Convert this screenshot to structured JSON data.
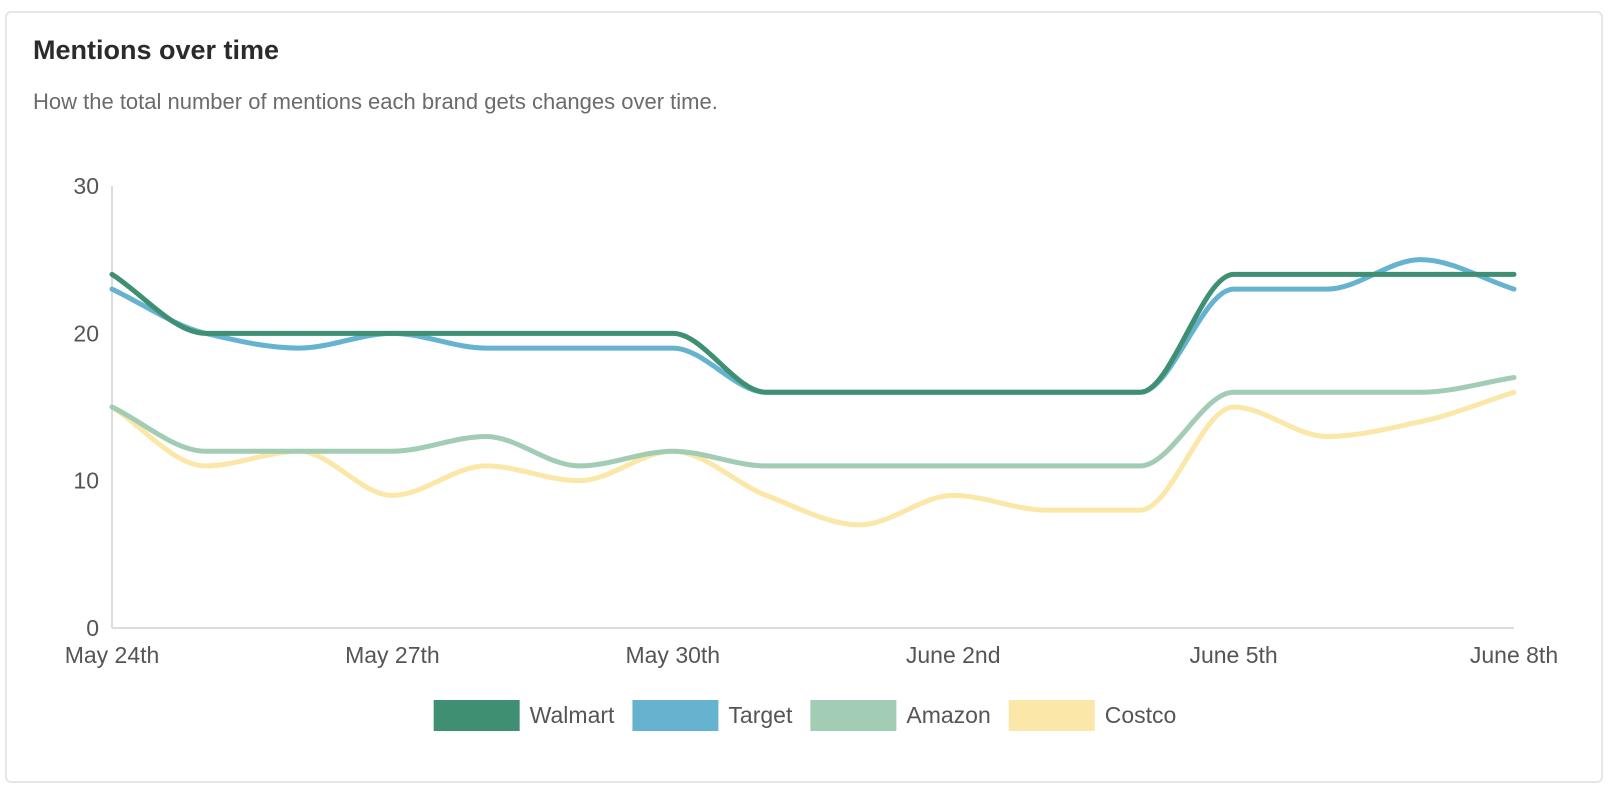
{
  "title": "Mentions over time",
  "subtitle": "How the total number of mentions each brand gets changes over time.",
  "chart_data": {
    "type": "line",
    "title": "Mentions over time",
    "subtitle": "How the total number of mentions each brand gets changes over time.",
    "xlabel": "",
    "ylabel": "",
    "x": [
      "May 24th",
      "May 25th",
      "May 26th",
      "May 27th",
      "May 28th",
      "May 29th",
      "May 30th",
      "May 31st",
      "June 1st",
      "June 2nd",
      "June 3rd",
      "June 4th",
      "June 5th",
      "June 6th",
      "June 7th",
      "June 8th"
    ],
    "x_ticks": [
      "May 24th",
      "May 27th",
      "May 30th",
      "June 2nd",
      "June 5th",
      "June 8th"
    ],
    "y_ticks": [
      0,
      10,
      20,
      30
    ],
    "ylim": [
      0,
      30
    ],
    "grid": false,
    "legend_position": "bottom",
    "series": [
      {
        "name": "Walmart",
        "color": "#3f8f72",
        "values": [
          24,
          20,
          20,
          20,
          20,
          20,
          20,
          16,
          16,
          16,
          16,
          16,
          24,
          24,
          24,
          24
        ]
      },
      {
        "name": "Target",
        "color": "#66b3d0",
        "values": [
          23,
          20,
          19,
          20,
          19,
          19,
          19,
          16,
          16,
          16,
          16,
          16,
          23,
          23,
          25,
          23
        ]
      },
      {
        "name": "Amazon",
        "color": "#a3ccb4",
        "values": [
          15,
          12,
          12,
          12,
          13,
          11,
          12,
          11,
          11,
          11,
          11,
          11,
          16,
          16,
          16,
          17
        ]
      },
      {
        "name": "Costco",
        "color": "#fbe7a8",
        "values": [
          15,
          11,
          12,
          9,
          11,
          10,
          12,
          9,
          7,
          9,
          8,
          8,
          15,
          13,
          14,
          16
        ]
      }
    ]
  }
}
